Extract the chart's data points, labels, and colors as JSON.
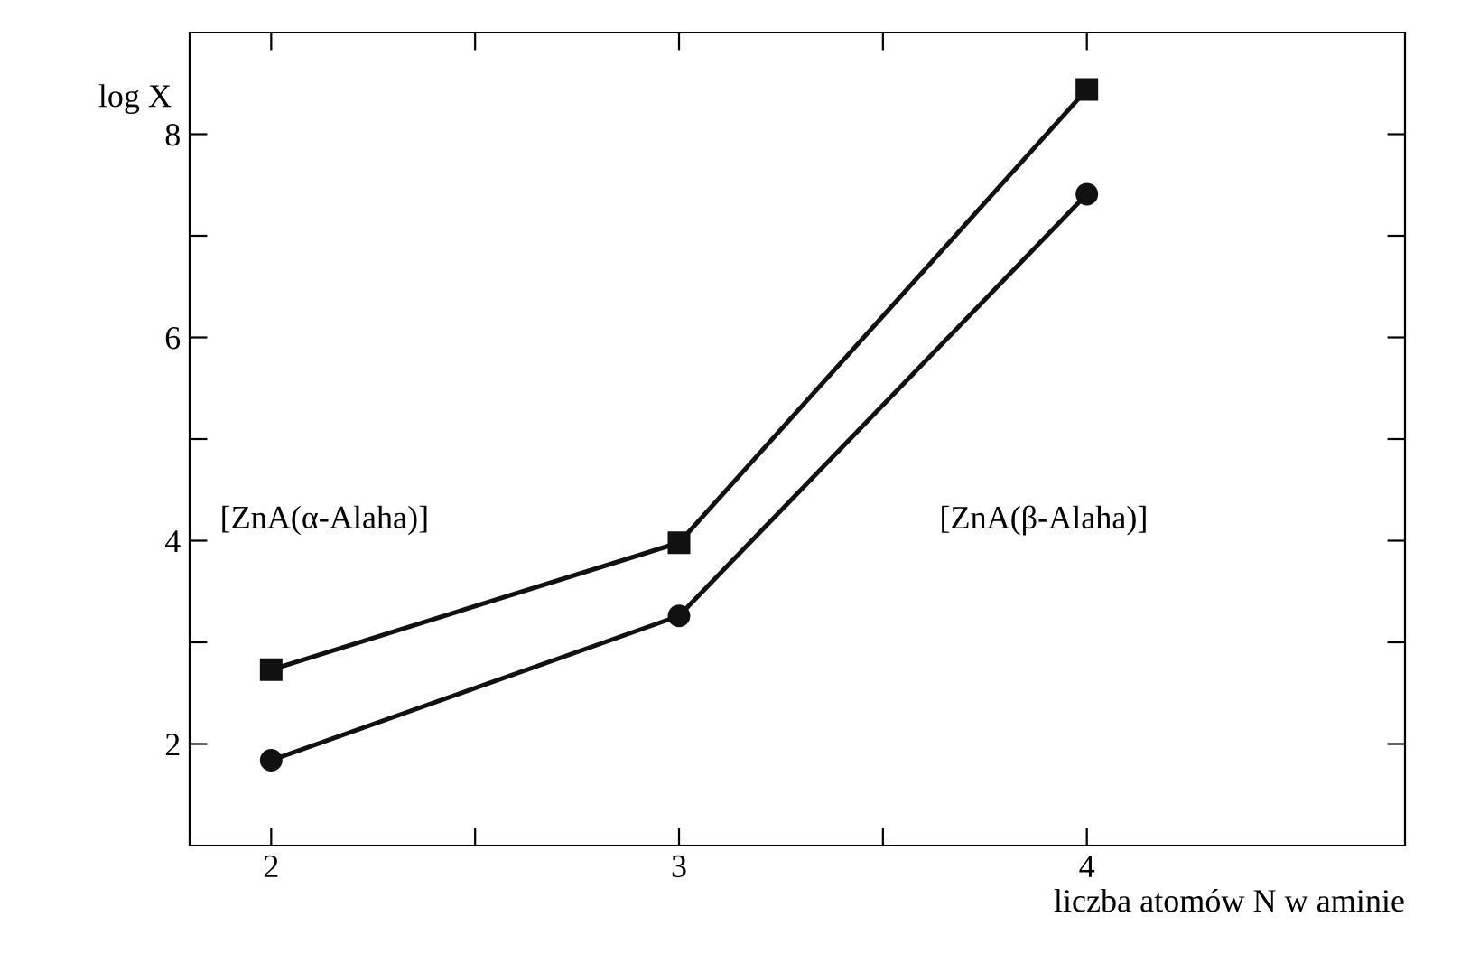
{
  "chart_data": {
    "type": "line",
    "xlabel": "liczba atomów N w aminie",
    "ylabel": "log X",
    "x": [
      2,
      3,
      4
    ],
    "series": [
      {
        "color": "#111111",
        "marker": "square",
        "values": [
          2.73,
          3.98,
          8.44
        ]
      },
      {
        "color": "#111111",
        "marker": "circle",
        "values": [
          1.84,
          3.26,
          7.41
        ]
      }
    ],
    "xlim": [
      1.8,
      4.78
    ],
    "ylim": [
      1.0,
      9.0
    ],
    "xticks": [
      2,
      {
        "value": 2.5,
        "label": null
      },
      3,
      {
        "value": 3.5,
        "label": null
      },
      4
    ],
    "yticks": [
      2,
      {
        "value": 3,
        "label": null
      },
      4,
      {
        "value": 5,
        "label": null
      },
      6,
      {
        "value": 7,
        "label": null
      },
      8
    ],
    "annotations": [
      "[ZnA(α-Alaha)]",
      "[ZnA(β-Alaha)]"
    ],
    "grid": false,
    "line_style": "solid"
  }
}
